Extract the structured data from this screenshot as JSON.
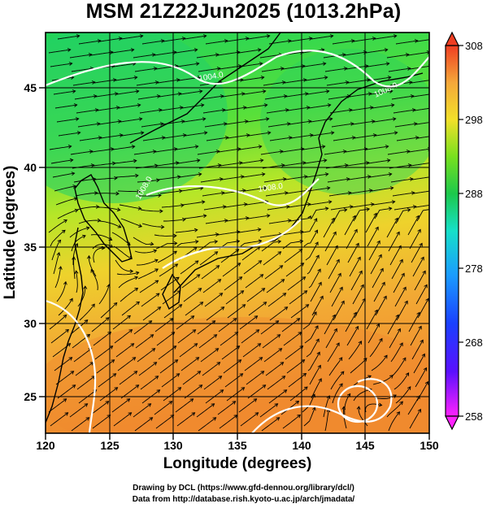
{
  "title": "MSM 21Z22Jun2025 (1013.2hPa)",
  "axes": {
    "xlabel": "Longitude (degrees)",
    "ylabel": "Latitude  (degrees)",
    "x_range": [
      120,
      150
    ],
    "y_range": [
      22.4,
      47.6
    ],
    "x_ticks": [
      "120",
      "125",
      "130",
      "135",
      "140",
      "145",
      "150"
    ],
    "y_ticks": [
      "25",
      "30",
      "35",
      "40",
      "45"
    ]
  },
  "colorbar": {
    "range": [
      258,
      308
    ],
    "ticks": [
      "308",
      "298",
      "288",
      "278",
      "268",
      "258"
    ],
    "colors": [
      "#ff22ff",
      "#3010ff",
      "#1a8cff",
      "#16e8d8",
      "#1cc84c",
      "#8ce61e",
      "#f2e02a",
      "#f4a83a",
      "#ef5a26"
    ]
  },
  "contours": {
    "labels": [
      "1004.0",
      "1008.0",
      "1008.0",
      "1008.0"
    ],
    "color": "#ffffff"
  },
  "credits": {
    "line1": "Drawing by DCL (https://www.gfd-dennou.org/library/dcl/)",
    "line2": "Data from http://database.rish.kyoto-u.ac.jp/arch/jmadata/"
  }
}
